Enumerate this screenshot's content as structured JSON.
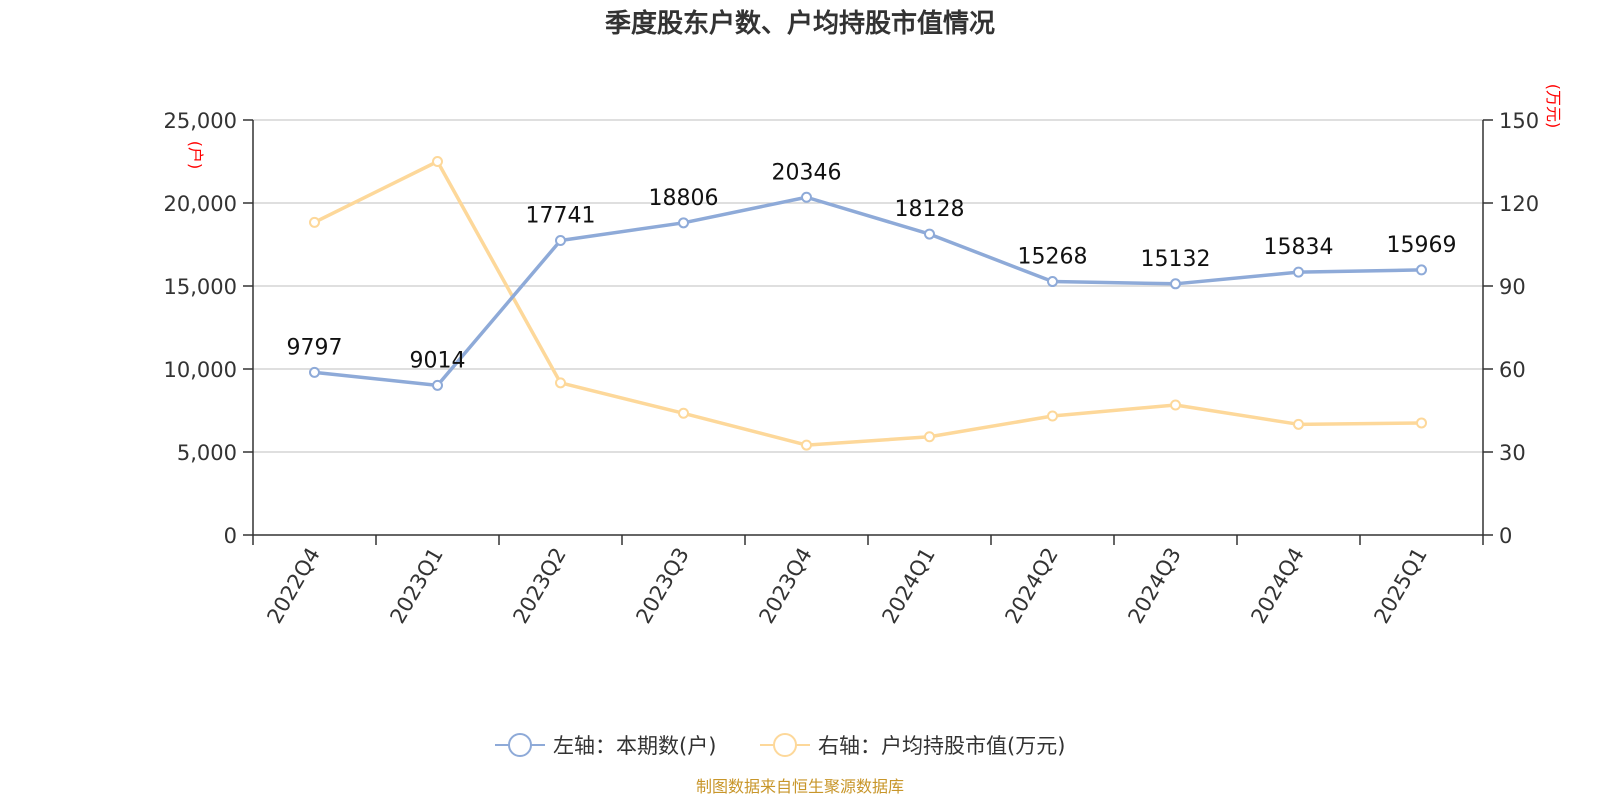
{
  "chart_data": {
    "type": "line",
    "title": "季度股东户数、户均持股市值情况",
    "categories": [
      "2022Q4",
      "2023Q1",
      "2023Q2",
      "2023Q3",
      "2023Q4",
      "2024Q1",
      "2024Q2",
      "2024Q3",
      "2024Q4",
      "2025Q1"
    ],
    "series": [
      {
        "name": "左轴：本期数(户)",
        "axis": "left",
        "color": "#8eaad8",
        "values": [
          9797,
          9014,
          17741,
          18806,
          20346,
          18128,
          15268,
          15132,
          15834,
          15969
        ],
        "data_labels": [
          "9797",
          "9014",
          "17741",
          "18806",
          "20346",
          "18128",
          "15268",
          "15132",
          "15834",
          "15969"
        ]
      },
      {
        "name": "右轴：户均持股市值(万元)",
        "axis": "right",
        "color": "#fdd89a",
        "values": [
          113,
          135,
          55,
          44,
          32.5,
          35.5,
          43,
          47,
          40,
          40.5
        ]
      }
    ],
    "y_left": {
      "unit": "(户)",
      "min": 0,
      "max": 25000,
      "ticks": [
        0,
        5000,
        10000,
        15000,
        20000,
        25000
      ],
      "tick_labels": [
        "0",
        "5,000",
        "10,000",
        "15,000",
        "20,000",
        "25,000"
      ]
    },
    "y_right": {
      "unit": "(万元)",
      "min": 0,
      "max": 150,
      "ticks": [
        0,
        30,
        60,
        90,
        120,
        150
      ],
      "tick_labels": [
        "0",
        "30",
        "60",
        "90",
        "120",
        "150"
      ]
    },
    "grid": true,
    "legend_position": "bottom"
  },
  "source": "制图数据来自恒生聚源数据库"
}
